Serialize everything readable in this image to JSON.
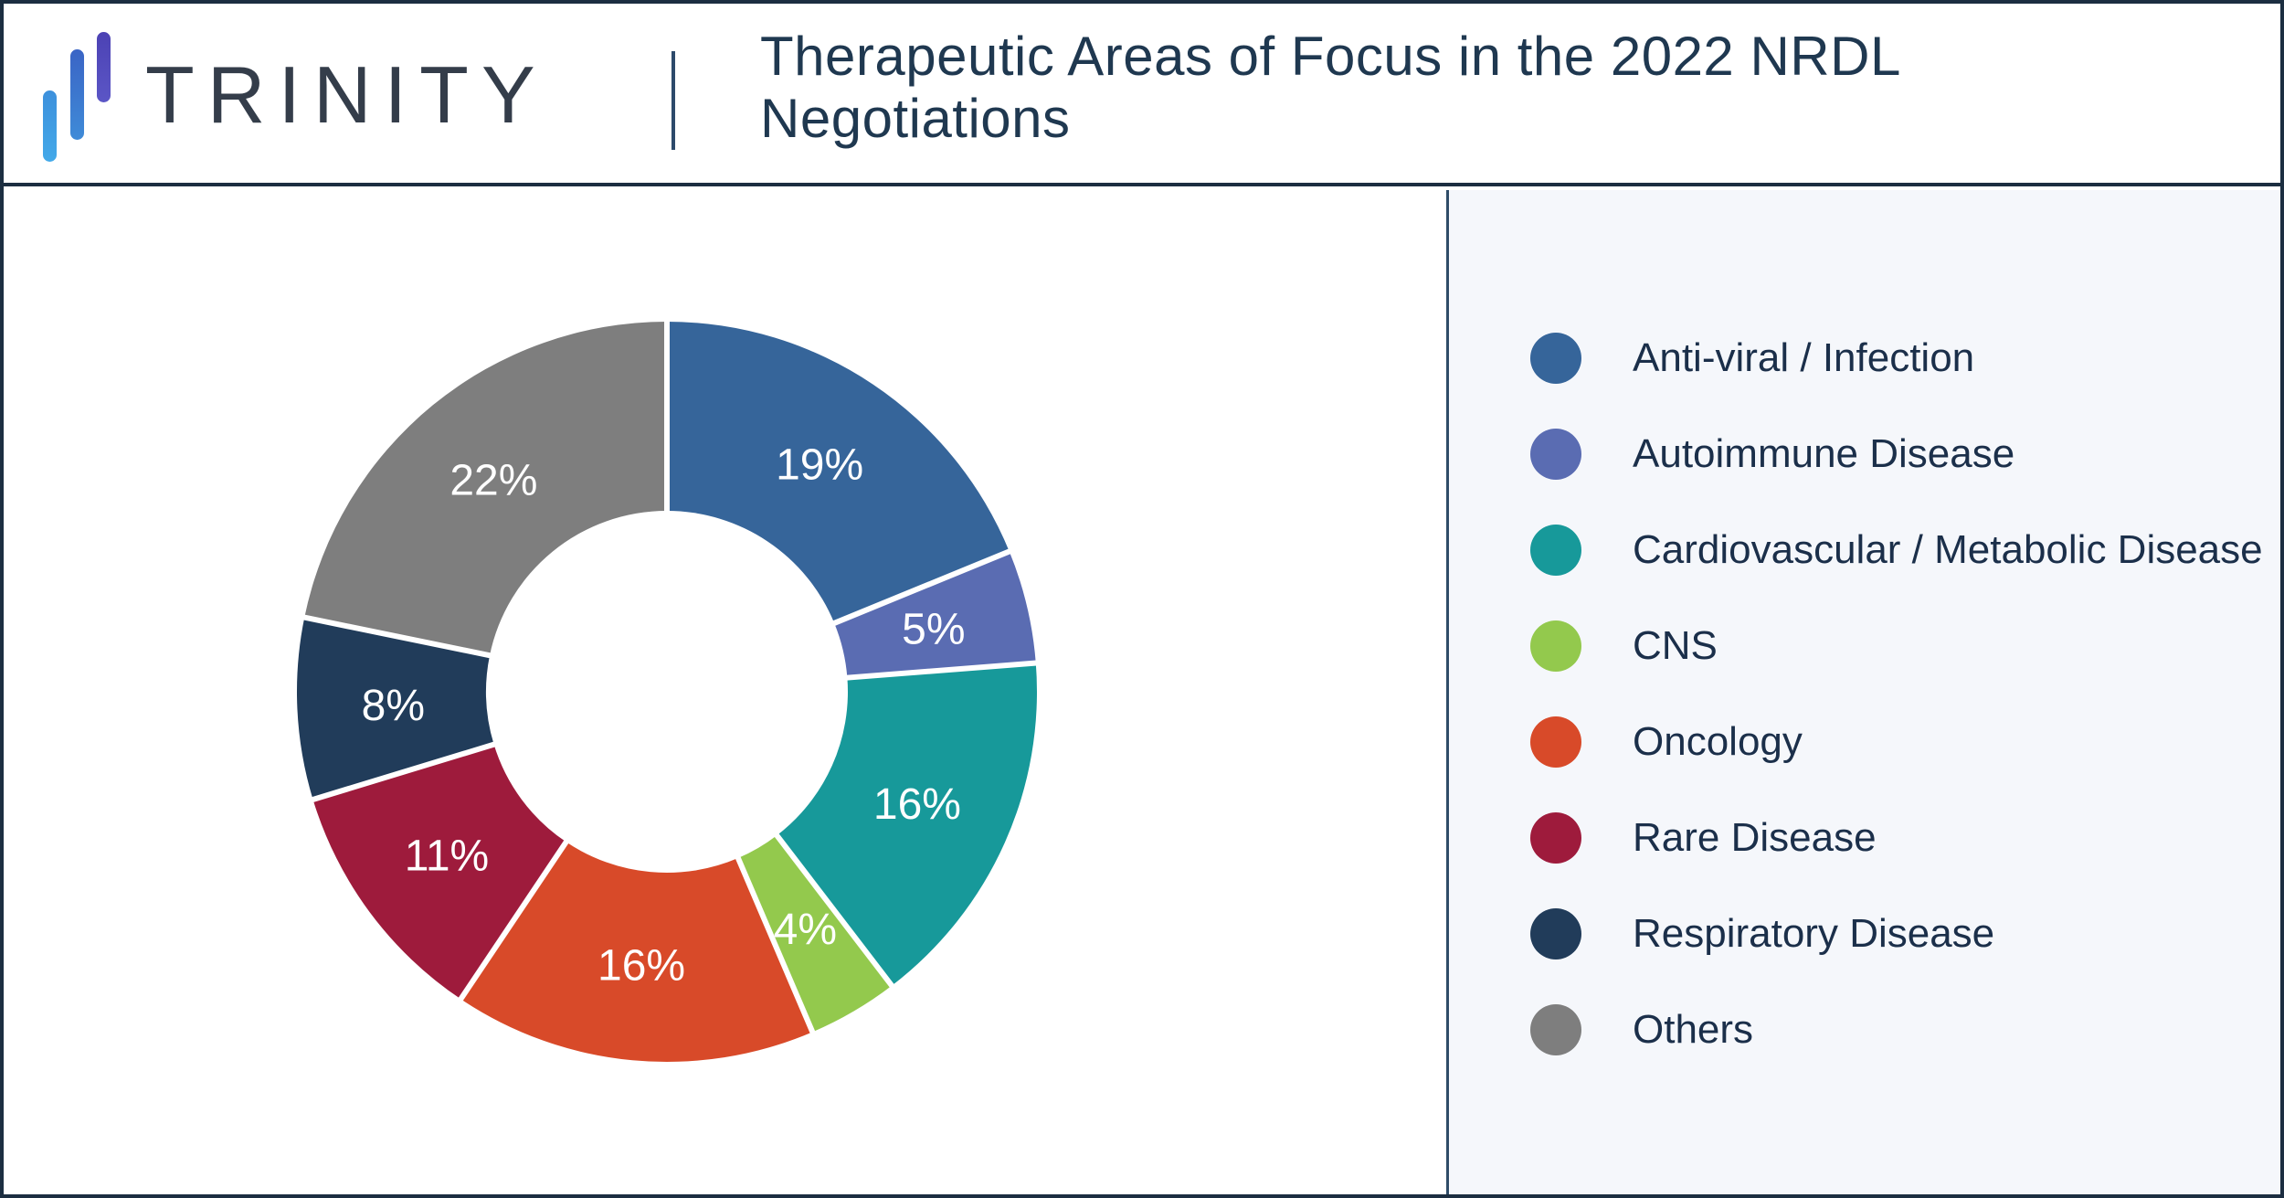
{
  "header": {
    "brand": "TRINITY",
    "title_lines": [
      "Therapeutic Areas of Focus in the 2022 NRDL",
      "Negotiations"
    ]
  },
  "chart_data": {
    "type": "donut",
    "title": "Therapeutic Areas of Focus in the 2022 NRDL Negotiations",
    "categories": [
      "Anti-viral / Infection",
      "Autoimmune Disease",
      "Cardiovascular / Metabolic Disease",
      "CNS",
      "Oncology",
      "Rare Disease",
      "Respiratory Disease",
      "Others"
    ],
    "values": [
      19,
      5,
      16,
      4,
      16,
      11,
      8,
      22
    ],
    "unit": "%",
    "data_labels": [
      "19%",
      "5%",
      "16%",
      "4%",
      "16%",
      "11%",
      "8%",
      "22%"
    ],
    "colors": [
      "#36659a",
      "#5a6cb2",
      "#17999a",
      "#93c94d",
      "#d84a29",
      "#9e1b3c",
      "#213c5a",
      "#7e7e7e"
    ],
    "start_angle": "12-oclock",
    "direction": "clockwise",
    "inner_radius_ratio": 0.49,
    "slice_gap_color": "#ffffff",
    "data_label_color": "#ffffff",
    "legend_position": "right"
  },
  "theme": {
    "frame_border": "#1c2e41",
    "header_bg": "#ffffff",
    "chart_panel_bg": "#ffffff",
    "legend_panel_bg": "#f5f7fb",
    "title_color": "#1f3850",
    "brand_color": "#343d4a",
    "legend_text_color": "#1b2f4a",
    "logo_bar_colors": [
      "#3f9ce2",
      "#3c74cc",
      "#5149ba"
    ]
  }
}
